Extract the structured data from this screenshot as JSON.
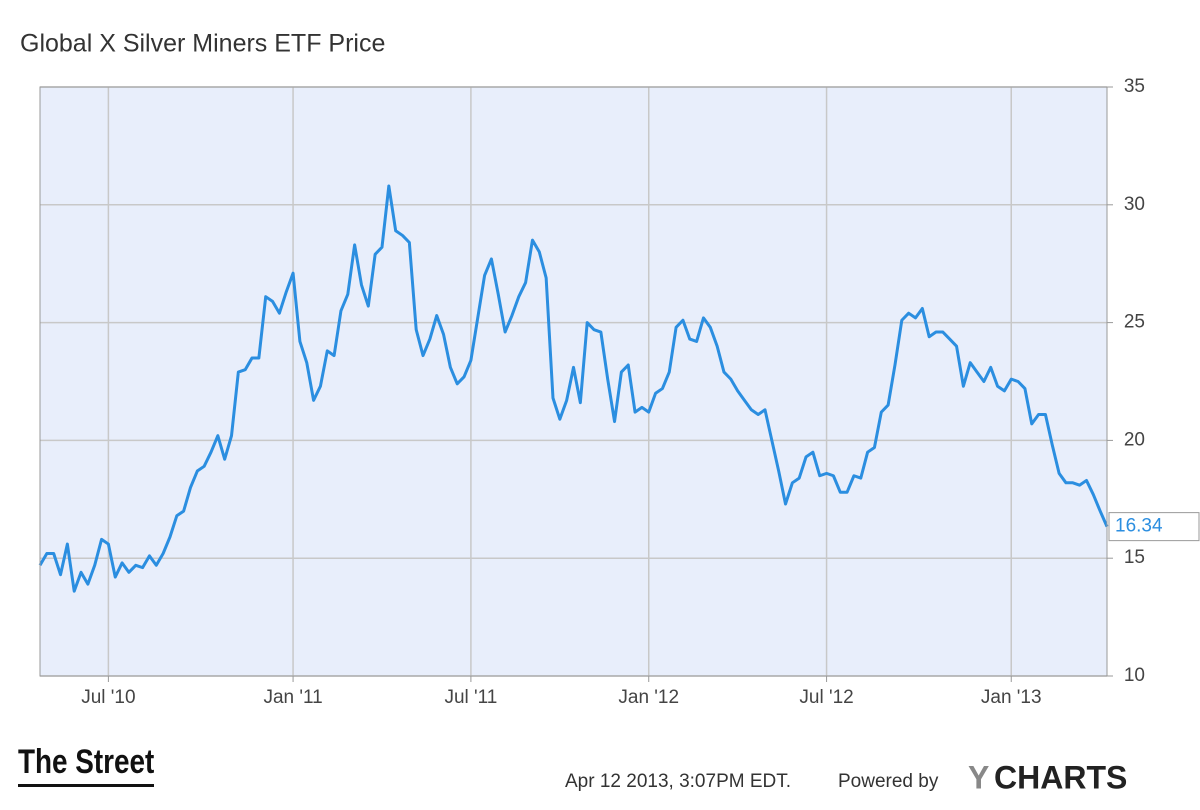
{
  "chart_data": {
    "type": "line",
    "title": "Global X Silver Miners ETF Price",
    "categories": [
      null,
      null,
      null,
      null,
      null,
      null,
      null,
      null,
      null,
      null,
      "Jul '10",
      null,
      null,
      null,
      null,
      null,
      null,
      null,
      null,
      null,
      null,
      null,
      null,
      null,
      null,
      null,
      null,
      null,
      null,
      null,
      null,
      null,
      null,
      null,
      null,
      null,
      null,
      "Jan '11",
      null,
      null,
      null,
      null,
      null,
      null,
      null,
      null,
      null,
      null,
      null,
      null,
      null,
      null,
      null,
      null,
      null,
      null,
      null,
      null,
      null,
      null,
      null,
      null,
      null,
      "Jul '11",
      null,
      null,
      null,
      null,
      null,
      null,
      null,
      null,
      null,
      null,
      null,
      null,
      null,
      null,
      null,
      null,
      null,
      null,
      null,
      null,
      null,
      null,
      null,
      null,
      null,
      "Jan '12",
      null,
      null,
      null,
      null,
      null,
      null,
      null,
      null,
      null,
      null,
      null,
      null,
      null,
      null,
      null,
      null,
      null,
      null,
      null,
      null,
      null,
      null,
      null,
      null,
      null,
      "Jul '12",
      null,
      null,
      null,
      null,
      null,
      null,
      null,
      null,
      null,
      null,
      null,
      null,
      null,
      null,
      null,
      null,
      null,
      null,
      null,
      null,
      null,
      null,
      null,
      null,
      null,
      null,
      "Jan '13",
      null,
      null,
      null,
      null,
      null,
      null,
      null,
      null,
      null,
      null,
      null,
      null,
      null,
      null
    ],
    "series": [
      {
        "name": "Global X Silver Miners ETF Price",
        "color": "#2b8ee0",
        "values": [
          14.7,
          15.2,
          15.2,
          14.3,
          15.6,
          13.6,
          14.4,
          13.9,
          14.7,
          15.8,
          15.6,
          14.2,
          14.8,
          14.4,
          14.7,
          14.6,
          15.1,
          14.7,
          15.2,
          15.9,
          16.8,
          17.0,
          18.0,
          18.7,
          18.9,
          19.5,
          20.2,
          19.2,
          20.2,
          22.9,
          23.0,
          23.5,
          23.5,
          26.1,
          25.9,
          25.4,
          26.3,
          27.1,
          24.2,
          23.3,
          21.7,
          22.3,
          23.8,
          23.6,
          25.5,
          26.2,
          28.3,
          26.6,
          25.7,
          27.9,
          28.2,
          30.8,
          28.9,
          28.7,
          28.4,
          24.7,
          23.6,
          24.3,
          25.3,
          24.5,
          23.1,
          22.4,
          22.7,
          23.4,
          25.2,
          27.0,
          27.7,
          26.2,
          24.6,
          25.3,
          26.1,
          26.7,
          28.5,
          28.0,
          26.9,
          21.8,
          20.9,
          21.7,
          23.1,
          21.6,
          25.0,
          24.7,
          24.6,
          22.6,
          20.8,
          22.9,
          23.2,
          21.2,
          21.4,
          21.2,
          22.0,
          22.2,
          22.9,
          24.8,
          25.1,
          24.3,
          24.2,
          25.2,
          24.8,
          24.0,
          22.9,
          22.6,
          22.1,
          21.7,
          21.3,
          21.1,
          21.3,
          20.0,
          18.7,
          17.3,
          18.2,
          18.4,
          19.3,
          19.5,
          18.5,
          18.6,
          18.5,
          17.8,
          17.8,
          18.5,
          18.4,
          19.5,
          19.7,
          21.2,
          21.5,
          23.2,
          25.1,
          25.4,
          25.2,
          25.6,
          24.4,
          24.6,
          24.6,
          24.3,
          24.0,
          22.3,
          23.3,
          22.9,
          22.5,
          23.1,
          22.3,
          22.1,
          22.6,
          22.5,
          22.2,
          20.7,
          21.1,
          21.1,
          19.8,
          18.6,
          18.2,
          18.2,
          18.1,
          18.3,
          17.7,
          17.0,
          16.34
        ]
      }
    ],
    "ylim": [
      10,
      35
    ],
    "yticks": [
      10,
      15,
      20,
      25,
      30,
      35
    ],
    "grid": true,
    "timestamp": "Apr 12 2013, 3:07PM EDT.",
    "credit": "Powered by",
    "brand_y": "Y",
    "brand_rest": "CHARTS",
    "logo": "The Street"
  }
}
